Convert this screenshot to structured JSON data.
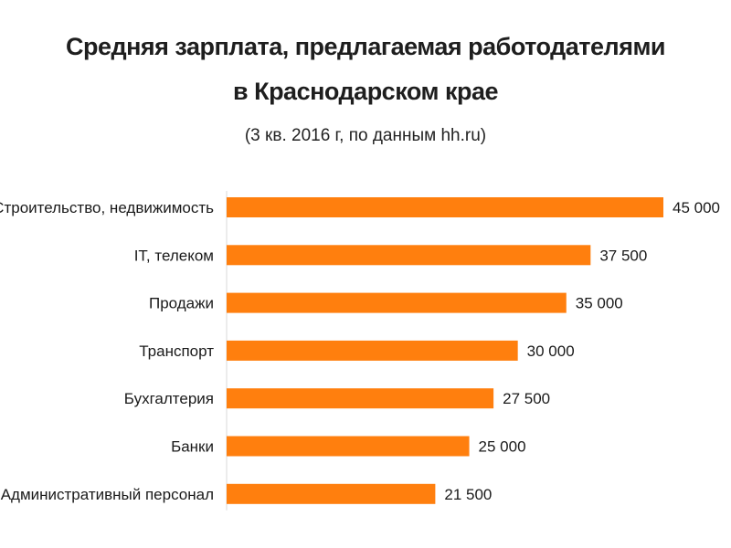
{
  "chart_data": {
    "type": "bar",
    "orientation": "horizontal",
    "title": "Средняя зарплата, предлагаемая работодателями",
    "title_line2": "в Краснодарском крае",
    "subtitle": "(3 кв. 2016 г, по данным hh.ru)",
    "categories": [
      "Строительство, недвижимость",
      "IT, телеком",
      "Продажи",
      "Транспорт",
      "Бухгалтерия",
      "Банки",
      "Административный персонал"
    ],
    "values": [
      45000,
      37500,
      35000,
      30000,
      27500,
      25000,
      21500
    ],
    "value_labels": [
      "45 000",
      "37 500",
      "35 000",
      "30 000",
      "27 500",
      "25 000",
      "21 500"
    ],
    "xlim": [
      0,
      45000
    ],
    "grid": false,
    "legend": "none",
    "bar_color": "#ff7f0e"
  }
}
